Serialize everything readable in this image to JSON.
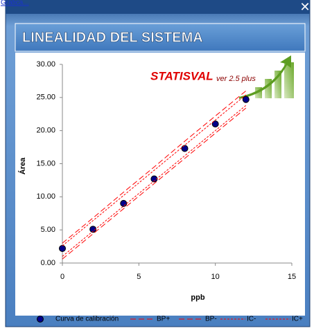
{
  "window": {
    "caption": "Gráfica..."
  },
  "logo": {
    "name": "STATISVAL",
    "version": "ver 2.5 plus"
  },
  "chart_data": {
    "type": "scatter",
    "title": "LINEALIDAD DEL SISTEMA",
    "x_label": "ppb",
    "y_label": "Área",
    "x": [
      0,
      2,
      4,
      6,
      8,
      10,
      12
    ],
    "xlim": [
      0,
      15
    ],
    "xticks": [
      0,
      5,
      10,
      15
    ],
    "ylim": [
      0,
      30
    ],
    "yticks": [
      {
        "value": 0,
        "label": "0.00"
      },
      {
        "value": 5,
        "label": "5.00"
      },
      {
        "value": 10,
        "label": "10.00"
      },
      {
        "value": 15,
        "label": "15.00"
      },
      {
        "value": 20,
        "label": "20.00"
      },
      {
        "value": 25,
        "label": "25.00"
      },
      {
        "value": 30,
        "label": "30.00"
      }
    ],
    "grid": false,
    "legend": "bottom",
    "series": [
      {
        "name": "Curva de calibración",
        "type": "scatter",
        "color": "#00008b",
        "values": [
          2.2,
          5.1,
          9.0,
          12.7,
          17.3,
          21.0,
          24.7
        ]
      },
      {
        "name": "BP+",
        "type": "line",
        "dash": "long",
        "color": "#ff0000",
        "values": [
          3.0,
          6.8,
          10.7,
          14.5,
          18.4,
          22.2,
          26.0
        ]
      },
      {
        "name": "BP-",
        "type": "line",
        "dash": "long",
        "color": "#ff0000",
        "values": [
          0.6,
          4.4,
          8.2,
          12.0,
          15.8,
          19.6,
          23.4
        ]
      },
      {
        "name": "IC-",
        "type": "line",
        "dash": "short",
        "color": "#ff0000",
        "values": [
          1.0,
          4.8,
          8.6,
          12.4,
          16.2,
          20.0,
          23.8
        ]
      },
      {
        "name": "IC+",
        "type": "line",
        "dash": "short",
        "color": "#ff0000",
        "values": [
          2.6,
          6.4,
          10.2,
          14.0,
          17.8,
          21.6,
          25.4
        ]
      }
    ]
  }
}
